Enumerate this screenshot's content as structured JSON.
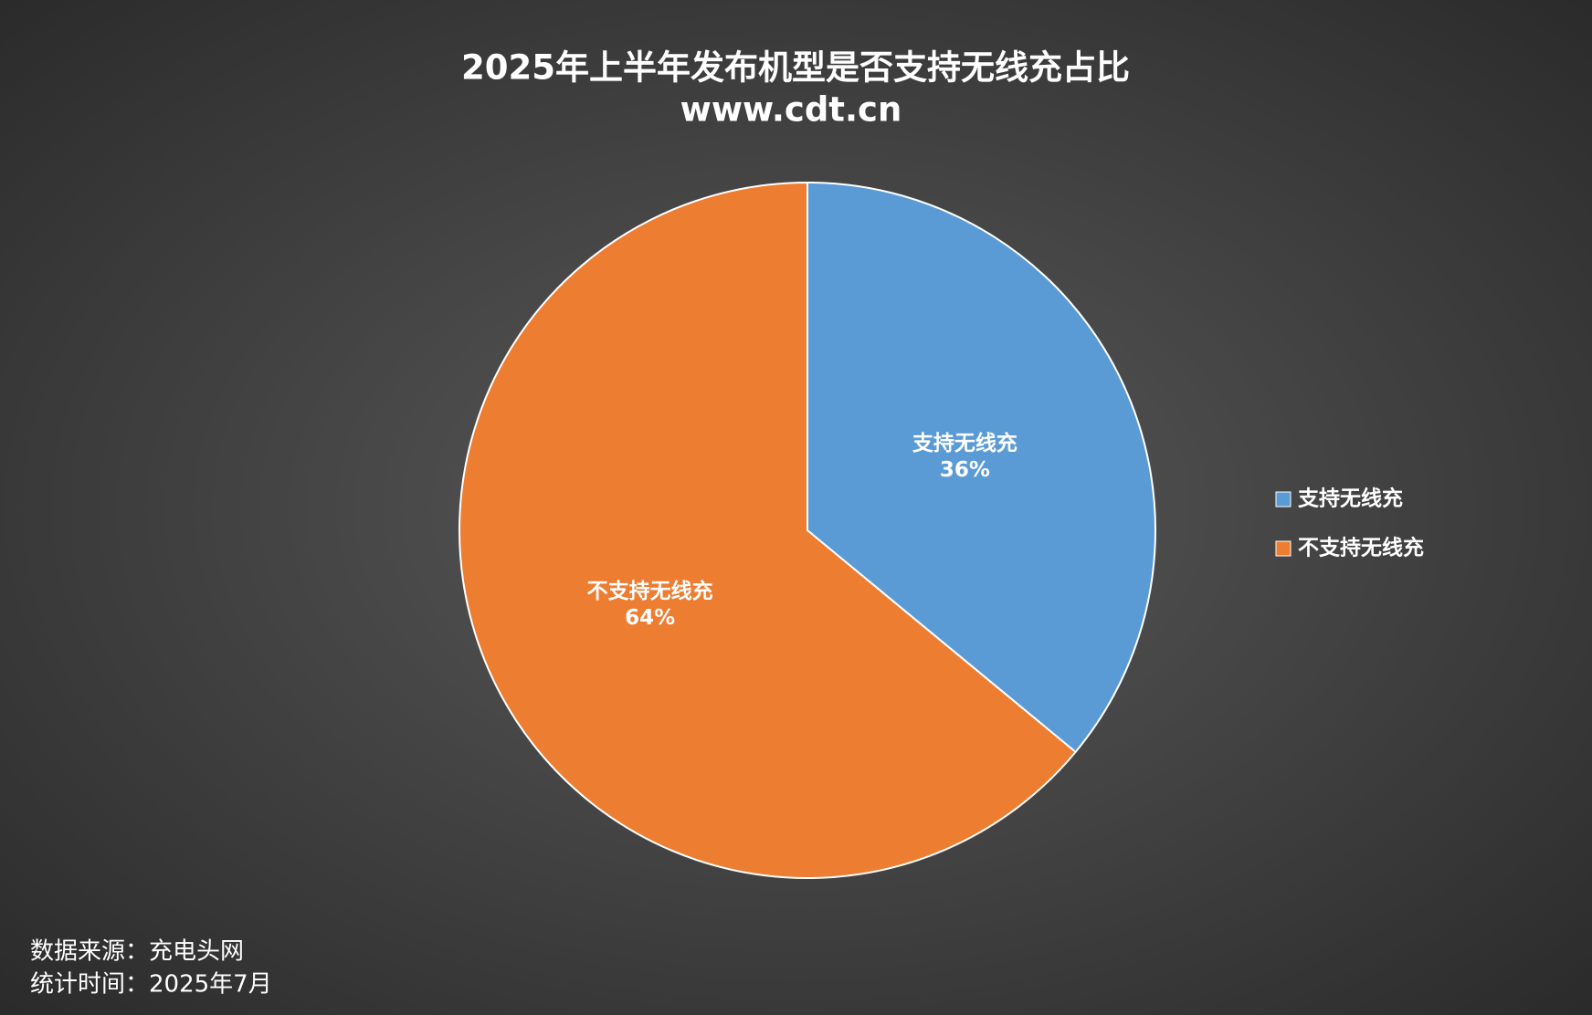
{
  "chart_data": {
    "type": "pie",
    "title": "2025年上半年发布机型是否支持无线充占比",
    "subtitle": "www.cdt.cn",
    "categories": [
      "支持无线充",
      "不支持无线充"
    ],
    "values": [
      36,
      64
    ],
    "value_labels": [
      "36%",
      "64%"
    ],
    "colors": [
      "#5b9bd5",
      "#ed7d31"
    ],
    "legend": "right",
    "notes": [
      "数据来源：充电头网",
      "统计时间：2025年7月"
    ]
  }
}
